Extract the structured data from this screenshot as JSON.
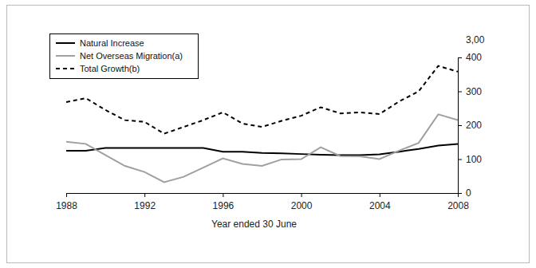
{
  "chart_data": {
    "type": "line",
    "xlabel": "Year ended 30 June",
    "ylabel": "3,00",
    "x": [
      1988,
      1989,
      1990,
      1991,
      1992,
      1993,
      1994,
      1995,
      1996,
      1997,
      1998,
      1999,
      2000,
      2001,
      2002,
      2003,
      2004,
      2005,
      2006,
      2007,
      2008
    ],
    "series": [
      {
        "name": "Natural Increase",
        "color": "#000000",
        "line_style": "solid",
        "values": [
          125,
          125,
          133,
          133,
          133,
          133,
          133,
          133,
          122,
          122,
          118,
          117,
          115,
          113,
          112,
          112,
          114,
          122,
          130,
          140,
          145
        ]
      },
      {
        "name": "Net Overseas Migration(a)",
        "color": "#a0a0a0",
        "line_style": "solid",
        "values": [
          151,
          145,
          112,
          80,
          62,
          32,
          48,
          75,
          102,
          86,
          80,
          99,
          100,
          135,
          109,
          108,
          100,
          125,
          148,
          232,
          215
        ]
      },
      {
        "name": "Total Growth(b)",
        "color": "#000000",
        "line_style": "dashed",
        "values": [
          268,
          280,
          245,
          215,
          210,
          175,
          195,
          215,
          238,
          205,
          195,
          213,
          228,
          253,
          235,
          238,
          233,
          270,
          300,
          375,
          358
        ]
      }
    ],
    "xlim": [
      1988,
      2008
    ],
    "xticks": [
      1988,
      1992,
      1996,
      2000,
      2004,
      2008
    ],
    "ylim": [
      0,
      400
    ],
    "yticks": [
      0,
      100,
      200,
      300,
      400
    ],
    "grid": false,
    "legend": "upper left"
  }
}
